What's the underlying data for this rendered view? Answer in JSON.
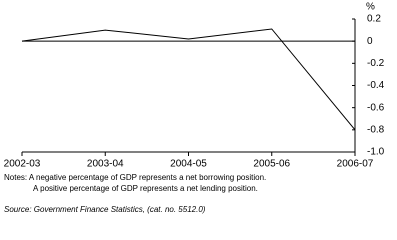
{
  "chart_data": {
    "type": "line",
    "categories": [
      "2002-03",
      "2003-04",
      "2004-05",
      "2005-06",
      "2006-07"
    ],
    "series": [
      {
        "name": null,
        "color": "#000000",
        "values": [
          0,
          0.1,
          0.02,
          0.11,
          -0.8
        ]
      }
    ],
    "ylim": [
      -1,
      0.2
    ],
    "yticks": [
      0.2,
      0,
      -0.2,
      -0.4,
      -0.6,
      -0.8,
      {
        "value": -1,
        "label": "-1.0"
      }
    ],
    "y_unit": "%",
    "zero_line": true,
    "notes": [
      "Notes: A negative percentage of GDP represents a net borrowing position.",
      "A positive percentage of GDP represents a net lending position."
    ],
    "source": "Source: Government Finance Statistics, (cat. no. 5512.0)"
  }
}
